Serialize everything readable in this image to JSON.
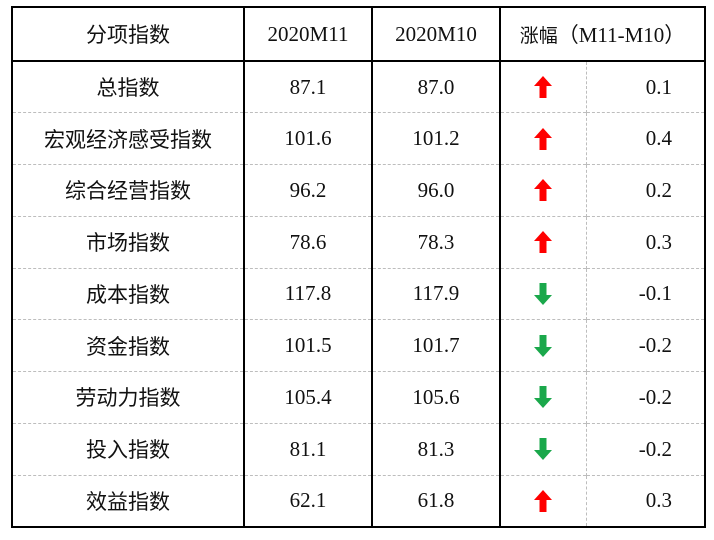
{
  "headers": {
    "name": "分项指数",
    "m11": "2020M11",
    "m10": "2020M10",
    "change": "涨幅",
    "change_suffix": "（M11-M10）"
  },
  "colors": {
    "up": "#ff0000",
    "down": "#1aa84b"
  },
  "rows": [
    {
      "name": "总指数",
      "m11": "87.1",
      "m10": "87.0",
      "direction": "up-arrow",
      "change": "0.1"
    },
    {
      "name": "宏观经济感受指数",
      "m11": "101.6",
      "m10": "101.2",
      "direction": "up-arrow",
      "change": "0.4"
    },
    {
      "name": "综合经营指数",
      "m11": "96.2",
      "m10": "96.0",
      "direction": "up-arrow",
      "change": "0.2"
    },
    {
      "name": "市场指数",
      "m11": "78.6",
      "m10": "78.3",
      "direction": "up-arrow",
      "change": "0.3"
    },
    {
      "name": "成本指数",
      "m11": "117.8",
      "m10": "117.9",
      "direction": "down-arrow",
      "change": "-0.1"
    },
    {
      "name": "资金指数",
      "m11": "101.5",
      "m10": "101.7",
      "direction": "down-arrow",
      "change": "-0.2"
    },
    {
      "name": "劳动力指数",
      "m11": "105.4",
      "m10": "105.6",
      "direction": "down-arrow",
      "change": "-0.2"
    },
    {
      "name": "投入指数",
      "m11": "81.1",
      "m10": "81.3",
      "direction": "down-arrow",
      "change": "-0.2"
    },
    {
      "name": "效益指数",
      "m11": "62.1",
      "m10": "61.8",
      "direction": "up-arrow",
      "change": "0.3"
    }
  ]
}
